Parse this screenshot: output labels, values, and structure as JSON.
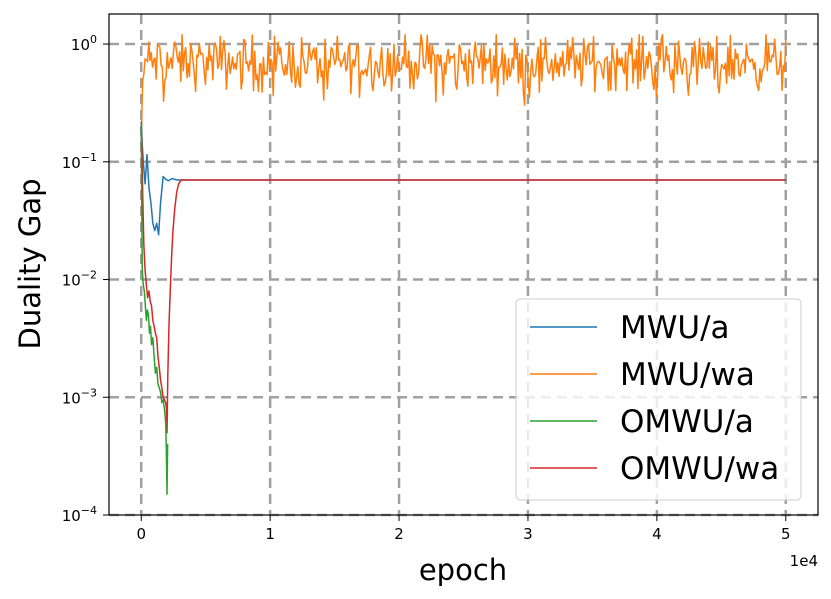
{
  "chart_data": {
    "type": "line",
    "title": "",
    "xlabel": "epoch",
    "ylabel": "Duality Gap",
    "x_multiplier_label": "1e4",
    "xlim": [
      -2500,
      52500
    ],
    "ylim": [
      0.0001,
      1.8
    ],
    "yscale": "log",
    "grid": true,
    "legend_placement": "lower right",
    "x_ticks": [
      {
        "value": 0,
        "label": "0"
      },
      {
        "value": 10000,
        "label": "1"
      },
      {
        "value": 20000,
        "label": "2"
      },
      {
        "value": 30000,
        "label": "3"
      },
      {
        "value": 40000,
        "label": "4"
      },
      {
        "value": 50000,
        "label": "5"
      }
    ],
    "y_ticks": [
      {
        "value": 1,
        "base": "10",
        "exp": "0"
      },
      {
        "value": 0.1,
        "base": "10",
        "exp": "−1"
      },
      {
        "value": 0.01,
        "base": "10",
        "exp": "−2"
      },
      {
        "value": 0.001,
        "base": "10",
        "exp": "−3"
      },
      {
        "value": 0.0001,
        "base": "10",
        "exp": "−4"
      }
    ],
    "series": [
      {
        "name": "MWU/a",
        "color": "#1f77b4",
        "x": [
          0,
          80,
          160,
          300,
          450,
          600,
          750,
          900,
          1050,
          1200,
          1350,
          1500,
          1700,
          1900,
          2100,
          2400,
          2800,
          3200,
          50000
        ],
        "y": [
          0.22,
          0.14,
          0.1,
          0.065,
          0.115,
          0.06,
          0.045,
          0.03,
          0.026,
          0.03,
          0.024,
          0.045,
          0.075,
          0.071,
          0.069,
          0.072,
          0.07,
          0.07,
          0.07
        ]
      },
      {
        "name": "MWU/wa",
        "color": "#ff7f0e",
        "x": [
          0,
          60,
          120,
          200,
          300
        ],
        "y": [
          0.12,
          0.3,
          0.5,
          0.55,
          0.75
        ],
        "noise_from": 300,
        "noise_to": 50000,
        "noise_level_median": 0.7,
        "noise_level_min": 0.3,
        "noise_level_max": 1.2
      },
      {
        "name": "OMWU/a",
        "color": "#2ca02c",
        "x": [
          0,
          80,
          160,
          240,
          320,
          400,
          480,
          560,
          640,
          720,
          800,
          900,
          1000,
          1100,
          1200,
          1300,
          1400,
          1500,
          1600,
          1700,
          1800,
          1900,
          1950,
          2000,
          2050
        ],
        "y": [
          0.2,
          0.012,
          0.009,
          0.008,
          0.006,
          0.0045,
          0.0055,
          0.005,
          0.0035,
          0.004,
          0.0028,
          0.0032,
          0.0022,
          0.0016,
          0.0018,
          0.0013,
          0.0012,
          0.0011,
          0.0009,
          0.00095,
          0.0008,
          0.0006,
          0.00035,
          0.00015,
          0.0004
        ]
      },
      {
        "name": "OMWU/wa",
        "color": "#d62728",
        "x": [
          0,
          60,
          120,
          200,
          300,
          400,
          500,
          600,
          700,
          800,
          900,
          1000,
          1100,
          1200,
          1300,
          1400,
          1500,
          1600,
          1700,
          1800,
          1900,
          1960,
          2000,
          2060,
          2150,
          2250,
          2350,
          2450,
          2600,
          2750,
          2900,
          3100,
          3400,
          50000
        ],
        "y": [
          0.2,
          0.12,
          0.05,
          0.02,
          0.012,
          0.009,
          0.007,
          0.008,
          0.0065,
          0.006,
          0.0045,
          0.004,
          0.0035,
          0.0032,
          0.0022,
          0.0018,
          0.0014,
          0.0012,
          0.001,
          0.00095,
          0.0009,
          0.0008,
          0.0005,
          0.0015,
          0.004,
          0.008,
          0.015,
          0.025,
          0.04,
          0.055,
          0.065,
          0.07,
          0.07,
          0.07
        ]
      }
    ]
  }
}
